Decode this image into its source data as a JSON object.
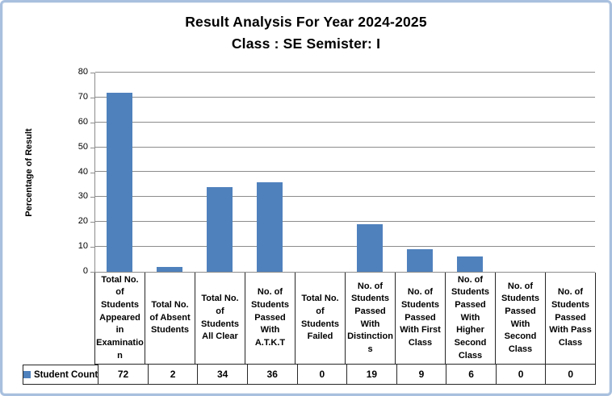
{
  "chart_data": {
    "type": "bar",
    "title": "Result Analysis For Year 2024-2025",
    "subtitle": "Class : SE Semister: I",
    "ylabel": "Percentage of Result",
    "xlabel": "",
    "ylim": [
      0,
      80
    ],
    "yticks": [
      0,
      10,
      20,
      30,
      40,
      50,
      60,
      70,
      80
    ],
    "grid": true,
    "legend_position": "bottom-left-table",
    "categories": [
      "Total No. of Students Appeared in Examination",
      "Total No. of Absent Students",
      "Total No. of Students All Clear",
      "No. of Students Passed With A.T.K.T",
      "Total No. of Students Failed",
      "No. of Students Passed With Distinctions",
      "No. of Students Passed With First Class",
      "No. of Students Passed With Higher Second Class",
      "No. of Students Passed With Second Class",
      "No. of Students Passed With Pass Class"
    ],
    "series": [
      {
        "name": "Student Count",
        "values": [
          72,
          2,
          34,
          36,
          0,
          19,
          9,
          6,
          0,
          0
        ]
      }
    ],
    "colors": {
      "bar": "#4f81bd",
      "gridline": "#8c8c8c",
      "table_border": "#262626",
      "frame_border": "#a9c0de",
      "legend_swatch": "#4f81bd",
      "text": "#000000"
    }
  }
}
